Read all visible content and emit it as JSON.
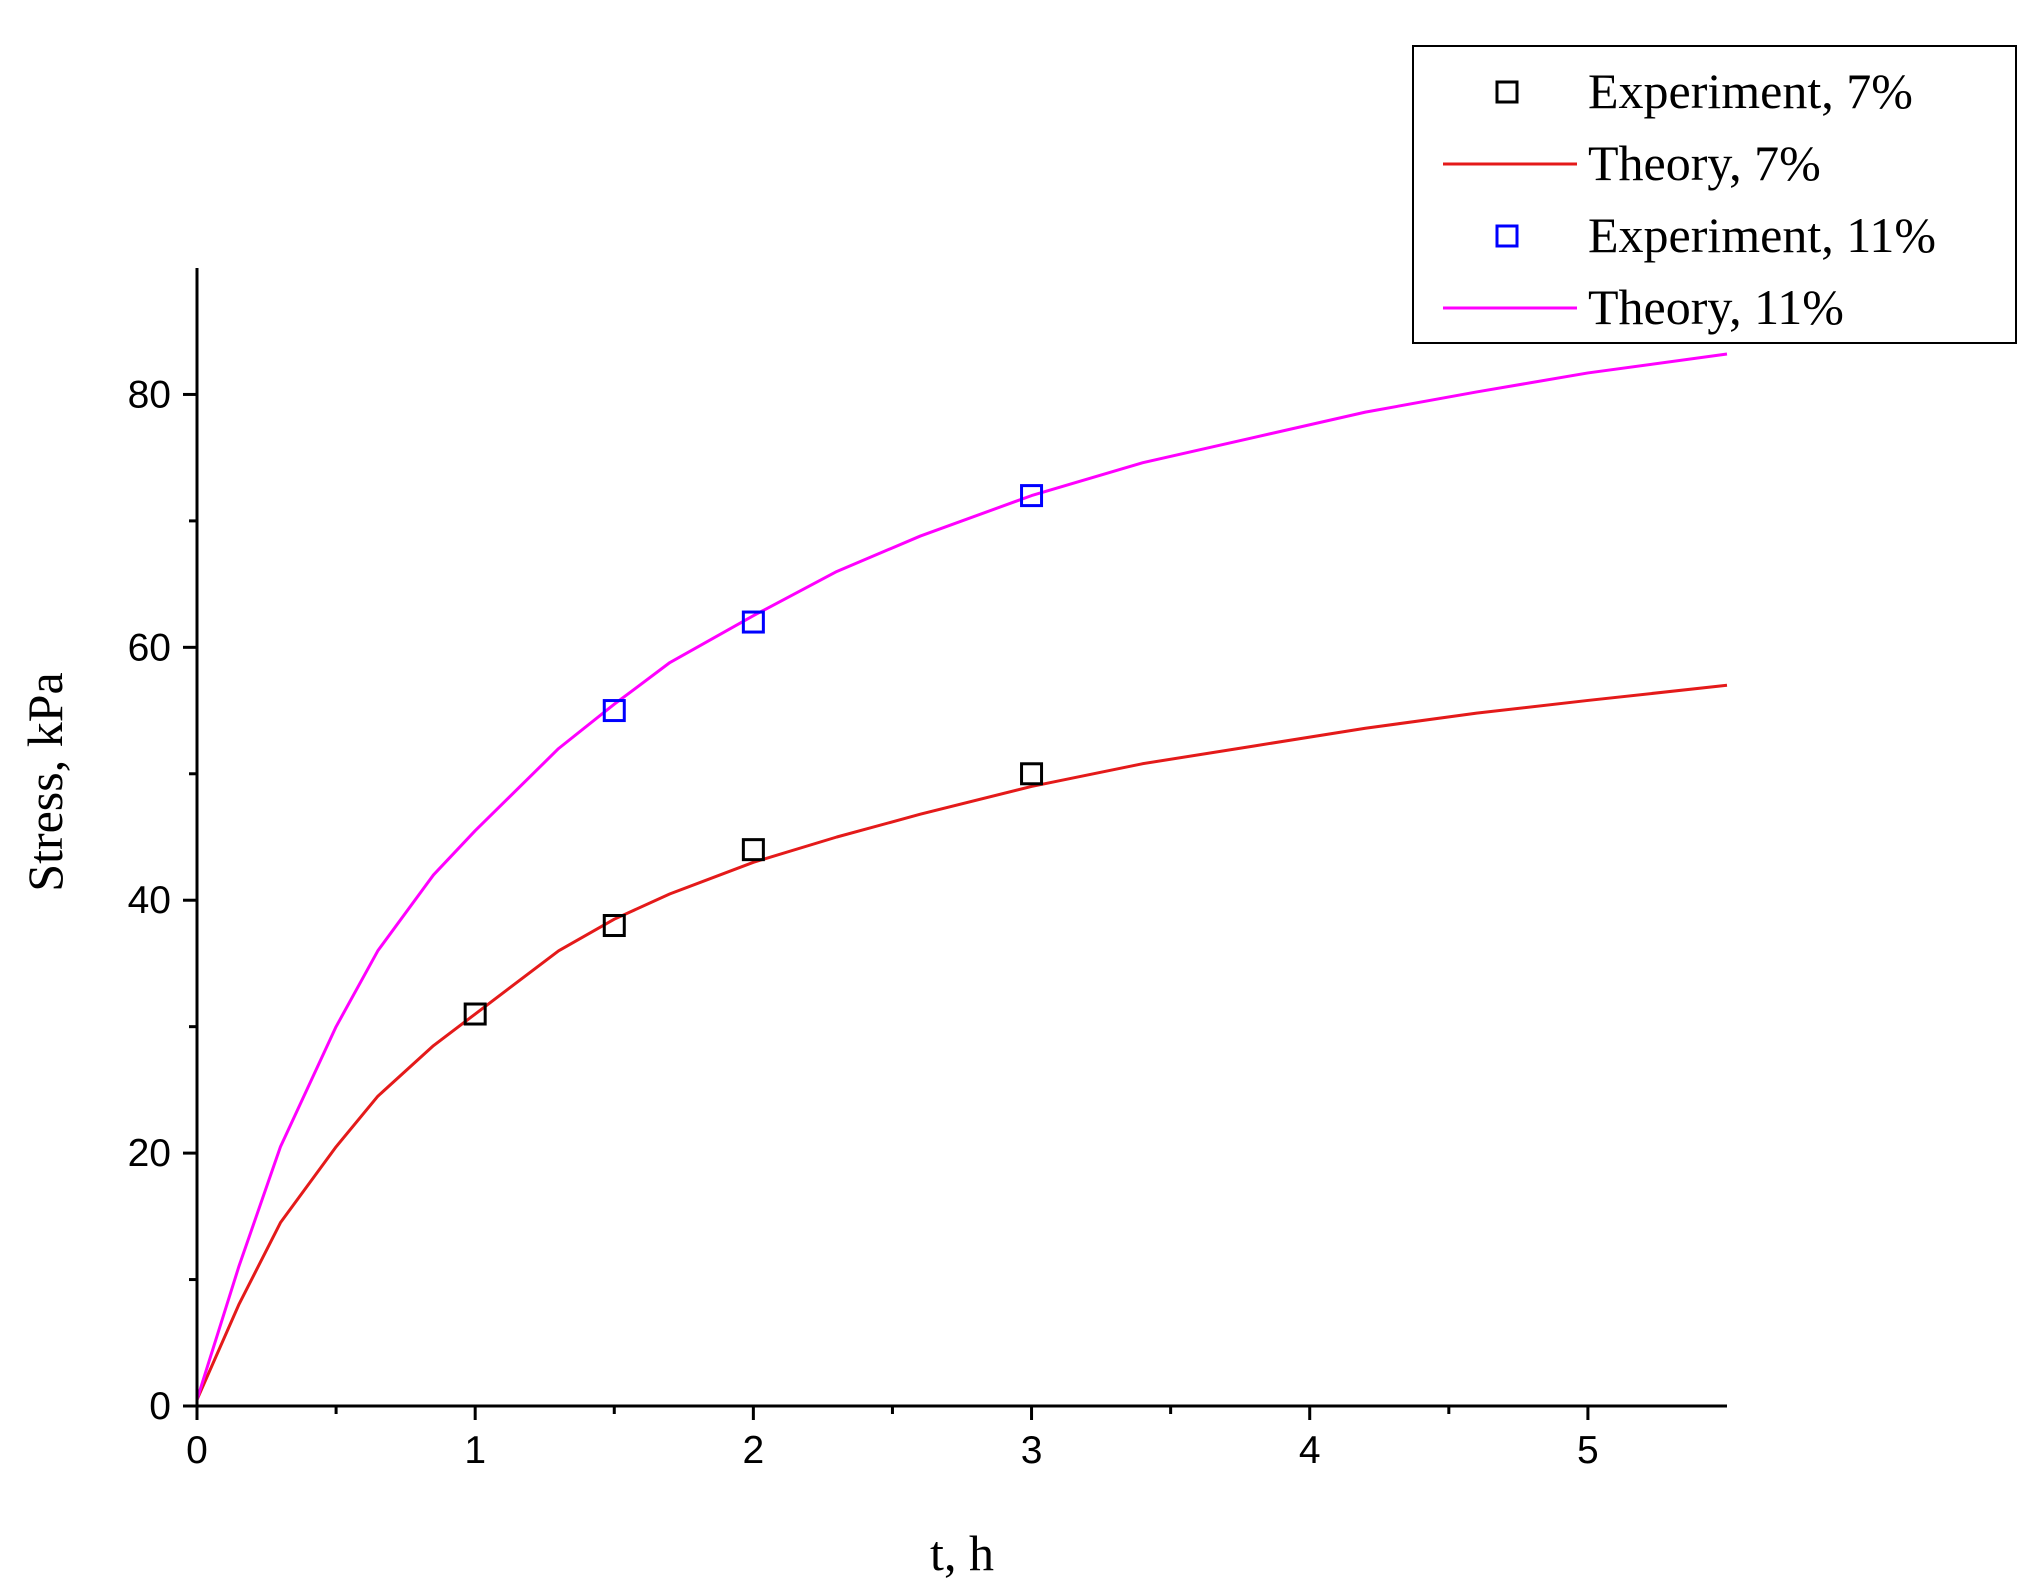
{
  "chart_data": {
    "type": "line",
    "title": "",
    "xlabel": "t, h",
    "ylabel": "Stress, kPa",
    "xlim": [
      0,
      5.5
    ],
    "ylim": [
      0,
      90
    ],
    "x_ticks": [
      0,
      1,
      2,
      3,
      4,
      5
    ],
    "x_minor_ticks": [
      0.5,
      1.5,
      2.5,
      3.5,
      4.5
    ],
    "y_ticks": [
      0,
      20,
      40,
      60,
      80
    ],
    "y_minor_ticks": [
      10,
      30,
      50,
      70
    ],
    "grid": false,
    "legend_position": "top-right",
    "series": [
      {
        "name": "Experiment, 7%",
        "kind": "scatter",
        "marker": "open-square",
        "color": "#000000",
        "x": [
          1,
          1.5,
          2,
          3
        ],
        "y": [
          31,
          38,
          44,
          50
        ]
      },
      {
        "name": "Theory, 7%",
        "kind": "line",
        "color": "#e41a1a",
        "x": [
          0,
          0.15,
          0.3,
          0.5,
          0.65,
          0.85,
          1.0,
          1.3,
          1.5,
          1.7,
          2.0,
          2.3,
          2.6,
          3.0,
          3.4,
          3.8,
          4.2,
          4.6,
          5.0,
          5.5
        ],
        "y": [
          0.5,
          8,
          14.5,
          20.5,
          24.5,
          28.5,
          31,
          36,
          38.5,
          40.5,
          43,
          45,
          46.8,
          49,
          50.8,
          52.2,
          53.6,
          54.8,
          55.8,
          57
        ]
      },
      {
        "name": "Experiment, 11%",
        "kind": "scatter",
        "marker": "open-square",
        "color": "#0000ff",
        "x": [
          1.5,
          2,
          3
        ],
        "y": [
          55,
          62,
          72
        ]
      },
      {
        "name": "Theory, 11%",
        "kind": "line",
        "color": "#ff00ff",
        "x": [
          0,
          0.15,
          0.3,
          0.5,
          0.65,
          0.85,
          1.0,
          1.3,
          1.5,
          1.7,
          2.0,
          2.3,
          2.6,
          3.0,
          3.4,
          3.8,
          4.2,
          4.6,
          5.0,
          5.5
        ],
        "y": [
          0.5,
          11,
          20.5,
          30,
          36,
          42,
          45.5,
          52,
          55.5,
          58.8,
          62.5,
          66,
          68.8,
          72,
          74.6,
          76.6,
          78.6,
          80.2,
          81.7,
          83.2
        ]
      }
    ]
  }
}
